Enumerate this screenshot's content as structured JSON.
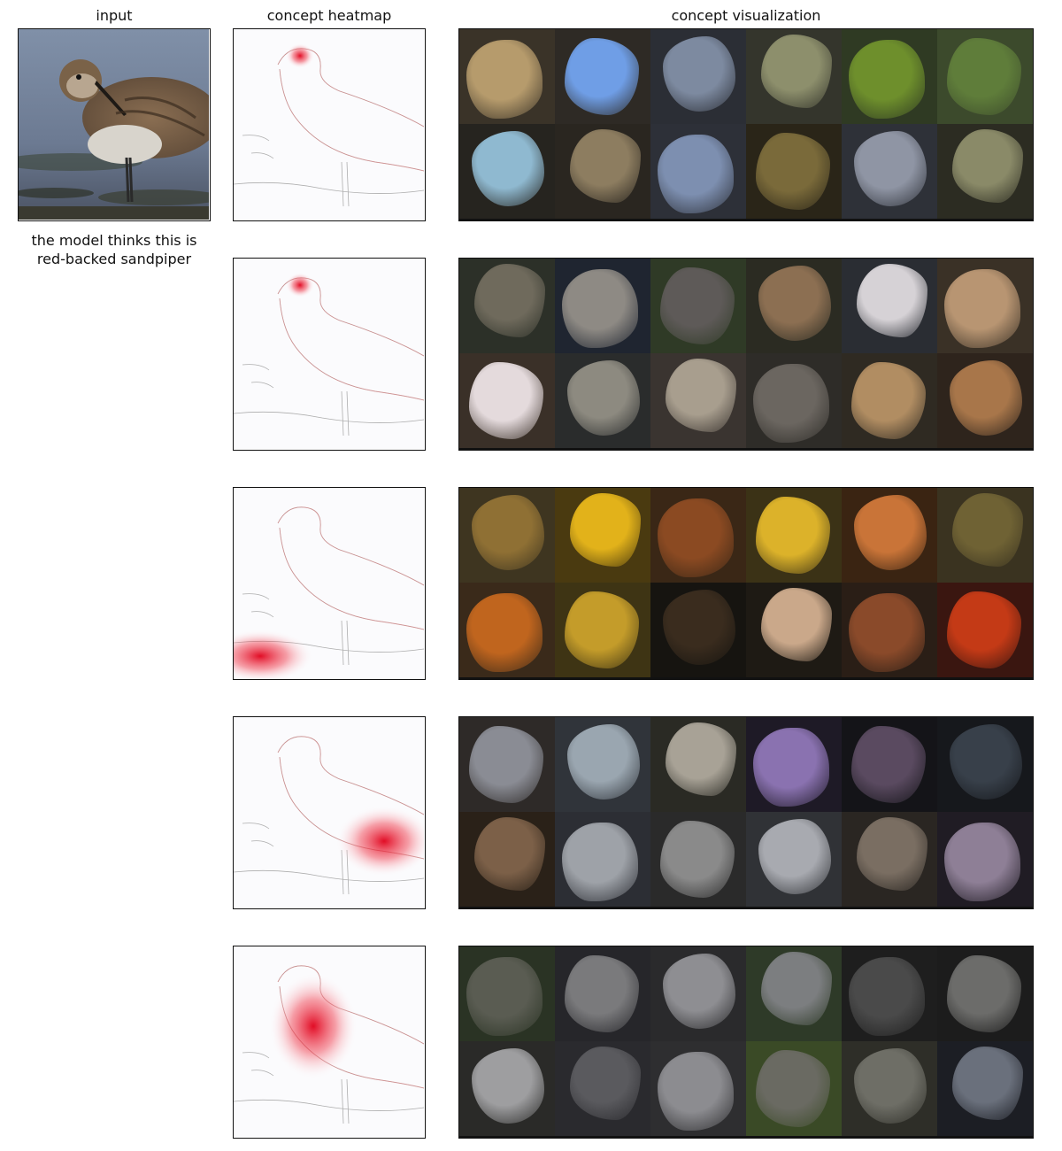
{
  "headers": {
    "input": "input",
    "heatmap": "concept heatmap",
    "visualization": "concept visualization"
  },
  "prediction": {
    "line1": "the model thinks this is",
    "line2": "red-backed sandpiper"
  },
  "concepts": [
    {
      "heat_focus": "head",
      "tiles": [
        {
          "bg": "#3a3328",
          "fg": "#b69b6c"
        },
        {
          "bg": "#2e2a25",
          "fg": "#6f9ee6"
        },
        {
          "bg": "#2b2e35",
          "fg": "#7d8aa0"
        },
        {
          "bg": "#34352c",
          "fg": "#8d8f6c"
        },
        {
          "bg": "#2f3a23",
          "fg": "#6e8f2c"
        },
        {
          "bg": "#3c4a2c",
          "fg": "#5f7d3a"
        },
        {
          "bg": "#26241f",
          "fg": "#8fb9d0"
        },
        {
          "bg": "#2a2620",
          "fg": "#8d7d60"
        },
        {
          "bg": "#2d3038",
          "fg": "#7d8fb0"
        },
        {
          "bg": "#2a2518",
          "fg": "#7a6a3a"
        },
        {
          "bg": "#2e3138",
          "fg": "#8f95a4"
        },
        {
          "bg": "#2c2c22",
          "fg": "#8a8a68"
        }
      ]
    },
    {
      "heat_focus": "head",
      "tiles": [
        {
          "bg": "#2c3028",
          "fg": "#6f6a5c"
        },
        {
          "bg": "#1f2530",
          "fg": "#8e8a84"
        },
        {
          "bg": "#2f3a26",
          "fg": "#5e5a58"
        },
        {
          "bg": "#2b2b22",
          "fg": "#8c6f52"
        },
        {
          "bg": "#2a2d33",
          "fg": "#d6d2d6"
        },
        {
          "bg": "#3a3126",
          "fg": "#b89572"
        },
        {
          "bg": "#3a3028",
          "fg": "#e4dadc"
        },
        {
          "bg": "#2a2c2c",
          "fg": "#8d8a80"
        },
        {
          "bg": "#3a3430",
          "fg": "#a89e8e"
        },
        {
          "bg": "#2e2c28",
          "fg": "#6b6660"
        },
        {
          "bg": "#2f2a22",
          "fg": "#b18d62"
        },
        {
          "bg": "#2e241c",
          "fg": "#a8764a"
        }
      ]
    },
    {
      "heat_focus": "ground",
      "tiles": [
        {
          "bg": "#3e3520",
          "fg": "#8f7034"
        },
        {
          "bg": "#4a3a10",
          "fg": "#e2b21a"
        },
        {
          "bg": "#3a2716",
          "fg": "#8b4a22"
        },
        {
          "bg": "#3b3216",
          "fg": "#dcb22a"
        },
        {
          "bg": "#3a2412",
          "fg": "#c97438"
        },
        {
          "bg": "#3a3320",
          "fg": "#6f6234"
        },
        {
          "bg": "#3a2a1a",
          "fg": "#c0651e"
        },
        {
          "bg": "#3e3414",
          "fg": "#c49c2a"
        },
        {
          "bg": "#161410",
          "fg": "#3a2c1e"
        },
        {
          "bg": "#1e1a14",
          "fg": "#caa88a"
        },
        {
          "bg": "#2a1e16",
          "fg": "#8a4a2a"
        },
        {
          "bg": "#3a1610",
          "fg": "#c43a16"
        }
      ]
    },
    {
      "heat_focus": "back",
      "tiles": [
        {
          "bg": "#2e2a28",
          "fg": "#8a8c94"
        },
        {
          "bg": "#30343a",
          "fg": "#9aa6b0"
        },
        {
          "bg": "#2a2a24",
          "fg": "#a8a296"
        },
        {
          "bg": "#1e1a26",
          "fg": "#8a72b0"
        },
        {
          "bg": "#141418",
          "fg": "#5a4a60"
        },
        {
          "bg": "#16181c",
          "fg": "#38404a"
        },
        {
          "bg": "#2a2118",
          "fg": "#7c6048"
        },
        {
          "bg": "#2c2e34",
          "fg": "#9ea2a8"
        },
        {
          "bg": "#2a2a2a",
          "fg": "#8a8a8a"
        },
        {
          "bg": "#303236",
          "fg": "#a8aab0"
        },
        {
          "bg": "#2a2622",
          "fg": "#7a6e62"
        },
        {
          "bg": "#201c24",
          "fg": "#8e7f96"
        }
      ]
    },
    {
      "heat_focus": "body",
      "tiles": [
        {
          "bg": "#2a3324",
          "fg": "#5a5c52"
        },
        {
          "bg": "#26262a",
          "fg": "#7a7a7c"
        },
        {
          "bg": "#2a2a2c",
          "fg": "#8e8e92"
        },
        {
          "bg": "#2e3a28",
          "fg": "#7c7e80"
        },
        {
          "bg": "#1e1e1e",
          "fg": "#4a4a4a"
        },
        {
          "bg": "#1c1c1c",
          "fg": "#6c6c6a"
        },
        {
          "bg": "#2a2a28",
          "fg": "#9e9ea0"
        },
        {
          "bg": "#2a2a2e",
          "fg": "#5a5a5e"
        },
        {
          "bg": "#2e2e30",
          "fg": "#8c8c90"
        },
        {
          "bg": "#3a4a26",
          "fg": "#6a6a62"
        },
        {
          "bg": "#2e2e28",
          "fg": "#6e6e66"
        },
        {
          "bg": "#1c1e24",
          "fg": "#6a707c"
        }
      ]
    }
  ]
}
